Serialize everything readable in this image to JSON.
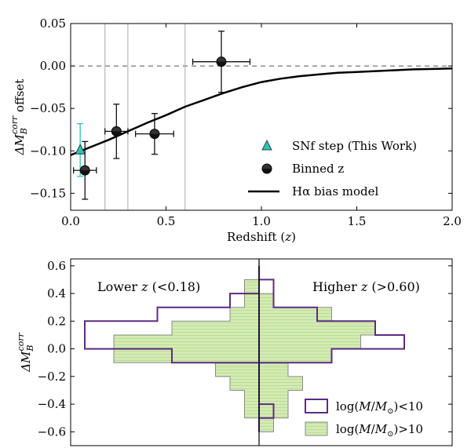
{
  "chart_data": [
    {
      "type": "scatter",
      "xlabel": "Redshift (z)",
      "ylabel": "ΔM_B^corr offset",
      "xlim": [
        0.0,
        2.0
      ],
      "ylim": [
        -0.17,
        0.05
      ],
      "xticks": [
        "0.0",
        "0.5",
        "1.0",
        "1.5",
        "2.0"
      ],
      "yticks": [
        "0.05",
        "0.00",
        "−0.05",
        "−0.10",
        "−0.15"
      ],
      "xtick_values": [
        0.0,
        0.5,
        1.0,
        1.5,
        2.0
      ],
      "ytick_values": [
        0.05,
        0.0,
        -0.05,
        -0.1,
        -0.15
      ],
      "reference_line_y": 0.0,
      "vertical_lines_x": [
        0.18,
        0.3,
        0.6
      ],
      "legend_position": "lower-right",
      "series": [
        {
          "name": "SNf step (This Work)",
          "kind": "point",
          "marker": "triangle",
          "color": "#2ec4b6",
          "points": [
            {
              "x": 0.05,
              "y": -0.099,
              "yerr": 0.031,
              "xerr": 0.0
            }
          ]
        },
        {
          "name": "Binned z",
          "kind": "point",
          "marker": "circle",
          "color": "#333333",
          "points": [
            {
              "x": 0.075,
              "y": -0.123,
              "yerr": 0.034,
              "xerr": 0.06
            },
            {
              "x": 0.24,
              "y": -0.077,
              "yerr": 0.032,
              "xerr": 0.06
            },
            {
              "x": 0.44,
              "y": -0.08,
              "yerr": 0.024,
              "xerr": 0.1
            },
            {
              "x": 0.79,
              "y": 0.005,
              "yerr": 0.036,
              "xerr": 0.15
            }
          ]
        },
        {
          "name": "Hα bias model",
          "kind": "line",
          "color": "#000000",
          "x": [
            0.0,
            0.1,
            0.2,
            0.3,
            0.4,
            0.5,
            0.6,
            0.7,
            0.8,
            0.9,
            1.0,
            1.1,
            1.2,
            1.3,
            1.4,
            1.5,
            1.6,
            1.7,
            1.8,
            1.9,
            2.0
          ],
          "y": [
            -0.105,
            -0.096,
            -0.087,
            -0.077,
            -0.067,
            -0.058,
            -0.048,
            -0.04,
            -0.032,
            -0.025,
            -0.019,
            -0.015,
            -0.012,
            -0.01,
            -0.008,
            -0.007,
            -0.006,
            -0.005,
            -0.004,
            -0.0035,
            -0.003
          ]
        }
      ]
    },
    {
      "type": "histogram",
      "ylabel": "ΔM_B^corr",
      "ylim": [
        -0.7,
        0.65
      ],
      "yticks": [
        "0.6",
        "0.4",
        "0.2",
        "0.0",
        "−0.2",
        "−0.4",
        "−0.6"
      ],
      "ytick_values": [
        0.6,
        0.4,
        0.2,
        0.0,
        -0.2,
        -0.4,
        -0.6
      ],
      "orientation": "horizontal-mirrored",
      "annotations": {
        "left": "Lower z  (<0.18)",
        "right": "Higher z  (>0.60)"
      },
      "legend_position": "lower-right",
      "bin_edges": [
        -0.6,
        -0.5,
        -0.4,
        -0.3,
        -0.2,
        -0.1,
        0.0,
        0.1,
        0.2,
        0.3,
        0.4,
        0.5,
        0.6
      ],
      "series": [
        {
          "name": "log(M/M⊙)<10",
          "color": "#5b2c83",
          "style": "outline",
          "lower_z_counts": [
            0,
            0,
            0,
            0,
            0,
            6,
            12,
            12,
            7,
            2,
            0,
            0
          ],
          "higher_z_counts": [
            0,
            1,
            0,
            0,
            0,
            5,
            10,
            8,
            4,
            1,
            1,
            0
          ]
        },
        {
          "name": "log(M/M⊙)>10",
          "color": "#c9e4a6",
          "style": "filled",
          "lower_z_counts": [
            0,
            1,
            1,
            2,
            3,
            10,
            10,
            6,
            2,
            1,
            1,
            0
          ],
          "higher_z_counts": [
            1,
            2,
            2,
            3,
            2,
            5,
            7,
            8,
            5,
            1,
            0,
            0
          ]
        }
      ]
    }
  ]
}
